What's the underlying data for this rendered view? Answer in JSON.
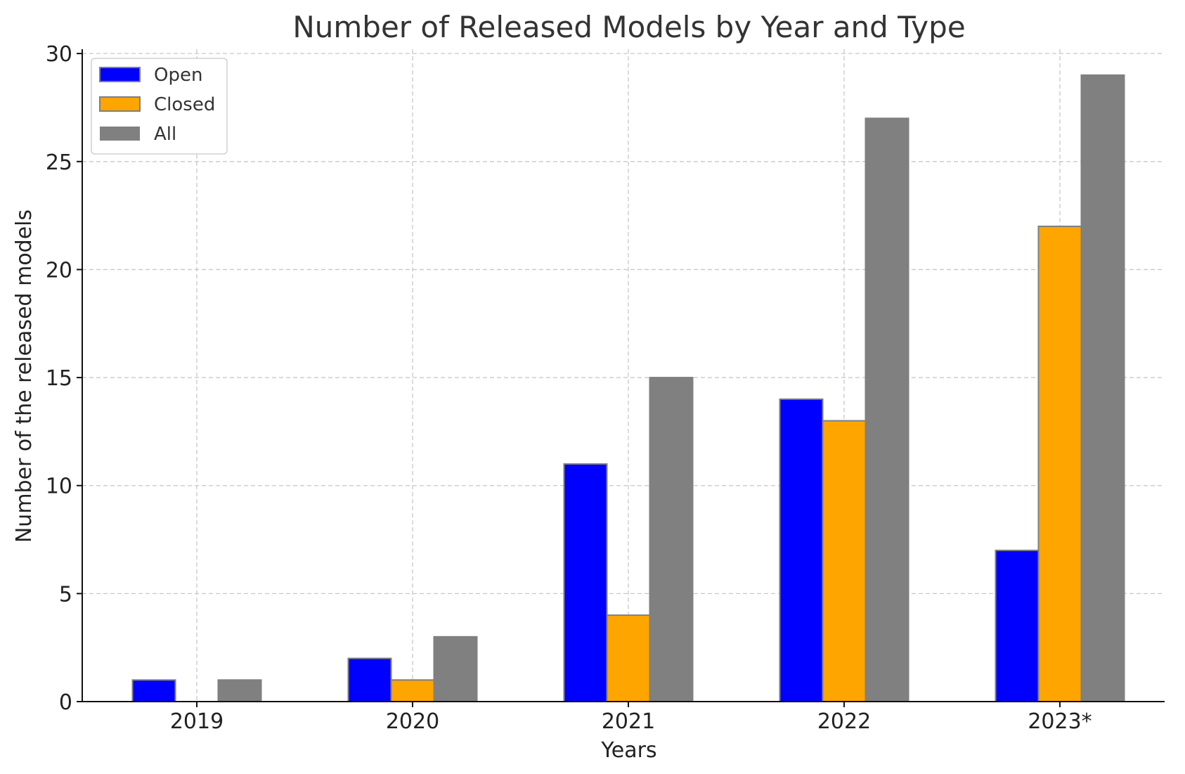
{
  "chart_data": {
    "type": "bar",
    "title": "Number of Released Models by Year and Type",
    "xlabel": "Years",
    "ylabel": "Number of the released models",
    "categories": [
      "2019",
      "2020",
      "2021",
      "2022",
      "2023*"
    ],
    "series": [
      {
        "name": "Open",
        "color": "#0000ff",
        "values": [
          1,
          2,
          11,
          14,
          7
        ]
      },
      {
        "name": "Closed",
        "color": "#ffa500",
        "values": [
          0,
          1,
          4,
          13,
          22
        ]
      },
      {
        "name": "All",
        "color": "#808080",
        "values": [
          1,
          3,
          15,
          27,
          29
        ]
      }
    ],
    "ylim": [
      0,
      30.2
    ],
    "yticks": [
      "0",
      "5",
      "10",
      "15",
      "20",
      "25",
      "30"
    ],
    "grid": true,
    "legend_position": "top-left"
  }
}
